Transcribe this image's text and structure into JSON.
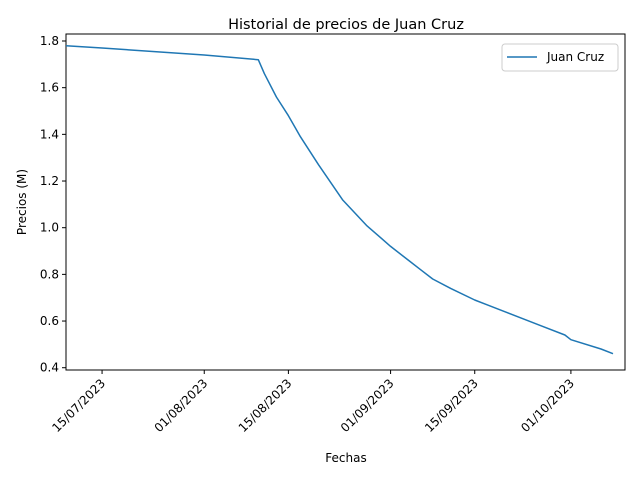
{
  "chart_data": {
    "type": "line",
    "title": "Historial de precios de Juan Cruz",
    "xlabel": "Fechas",
    "ylabel": "Precios (M)",
    "ylim": [
      0.4,
      1.8
    ],
    "yticks": [
      0.4,
      0.6,
      0.8,
      1.0,
      1.2,
      1.4,
      1.6,
      1.8
    ],
    "ytick_labels": [
      "0.4",
      "0.6",
      "0.8",
      "1.0",
      "1.2",
      "1.4",
      "1.6",
      "1.8"
    ],
    "xlim": [
      "2023-07-09",
      "2023-10-10"
    ],
    "xticks": [
      "2023-07-15",
      "2023-08-01",
      "2023-08-15",
      "2023-09-01",
      "2023-09-15",
      "2023-10-01"
    ],
    "xtick_labels": [
      "15/07/2023",
      "01/08/2023",
      "15/08/2023",
      "01/09/2023",
      "15/09/2023",
      "01/10/2023"
    ],
    "grid": false,
    "legend": "top-right",
    "series": [
      {
        "name": "Juan Cruz",
        "color": "#1f77b4",
        "points": [
          [
            "2023-07-09",
            1.78
          ],
          [
            "2023-07-15",
            1.77
          ],
          [
            "2023-08-01",
            1.74
          ],
          [
            "2023-08-10",
            1.72
          ],
          [
            "2023-08-11",
            1.66
          ],
          [
            "2023-08-13",
            1.56
          ],
          [
            "2023-08-15",
            1.48
          ],
          [
            "2023-08-17",
            1.39
          ],
          [
            "2023-08-20",
            1.27
          ],
          [
            "2023-08-24",
            1.12
          ],
          [
            "2023-08-28",
            1.01
          ],
          [
            "2023-09-01",
            0.92
          ],
          [
            "2023-09-04",
            0.86
          ],
          [
            "2023-09-06",
            0.82
          ],
          [
            "2023-09-08",
            0.78
          ],
          [
            "2023-09-11",
            0.74
          ],
          [
            "2023-09-15",
            0.69
          ],
          [
            "2023-09-17",
            0.67
          ],
          [
            "2023-09-20",
            0.64
          ],
          [
            "2023-09-23",
            0.61
          ],
          [
            "2023-09-26",
            0.58
          ],
          [
            "2023-09-30",
            0.54
          ],
          [
            "2023-10-01",
            0.52
          ],
          [
            "2023-10-06",
            0.48
          ],
          [
            "2023-10-08",
            0.46
          ]
        ]
      }
    ]
  }
}
